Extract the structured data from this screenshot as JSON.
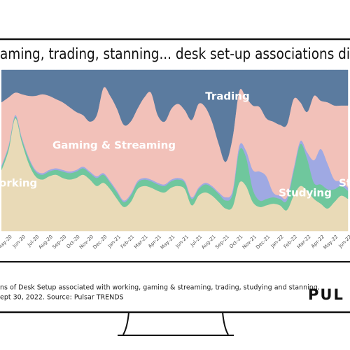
{
  "chart_data": {
    "type": "area",
    "stacked": true,
    "title": "aming, trading, stanning... desk set-up associations di",
    "caption": [
      "ns of Desk Setup associated with working, gaming & streaming, trading, studying and stanning,",
      "ept 30, 2022. Source: Pulsar TRENDS"
    ],
    "logo": "PUL",
    "categories": [
      null,
      "May-20",
      null,
      "Jun-20",
      null,
      "Jul-20",
      null,
      "Aug-20",
      null,
      "Sep-20",
      null,
      "Oct-20",
      null,
      "Nov-20",
      null,
      "Dec-20",
      null,
      "Jan-21",
      null,
      "Feb-21",
      null,
      "Mar-21",
      null,
      "Apr-21",
      null,
      "May-21",
      null,
      "Jun-21",
      null,
      "Jul-21",
      null,
      "Aug-21",
      null,
      "Sep-21",
      null,
      "Oct-21",
      null,
      "Nov-21",
      null,
      "Dec-21",
      null,
      "Jan-22",
      null,
      "Feb-22",
      null,
      "Mar-22",
      null,
      "Apr-22",
      null,
      "May-22",
      null,
      "Jun-22"
    ],
    "ylim": [
      0,
      100
    ],
    "series": [
      {
        "name": "Working",
        "color": "#e9dab7",
        "values": [
          38,
          50,
          70,
          55,
          42,
          34,
          32,
          34,
          35,
          33,
          32,
          33,
          35,
          32,
          28,
          30,
          26,
          20,
          15,
          18,
          26,
          28,
          27,
          25,
          24,
          27,
          28,
          26,
          16,
          22,
          24,
          22,
          18,
          14,
          15,
          30,
          28,
          18,
          15,
          16,
          17,
          16,
          13,
          22,
          28,
          25,
          20,
          17,
          14,
          18,
          22,
          20
        ]
      },
      {
        "name": "Studying",
        "color": "#6fc79d",
        "values": [
          2,
          2,
          1,
          2,
          3,
          3,
          3,
          3,
          3,
          4,
          4,
          4,
          4,
          4,
          5,
          5,
          4,
          4,
          3,
          4,
          4,
          4,
          4,
          4,
          4,
          4,
          4,
          4,
          4,
          4,
          5,
          5,
          5,
          5,
          8,
          20,
          18,
          8,
          4,
          4,
          4,
          4,
          6,
          15,
          26,
          20,
          10,
          12,
          12,
          8,
          6,
          5
        ]
      },
      {
        "name": "Stanning",
        "color": "#9fa9e3",
        "values": [
          1,
          1,
          1,
          1,
          1,
          1,
          1,
          1,
          1,
          1,
          1,
          1,
          1,
          1,
          1,
          1,
          1,
          1,
          1,
          1,
          1,
          1,
          1,
          1,
          1,
          1,
          1,
          1,
          1,
          1,
          1,
          1,
          1,
          2,
          2,
          3,
          4,
          12,
          18,
          14,
          3,
          2,
          2,
          2,
          2,
          4,
          14,
          22,
          16,
          6,
          3,
          2
        ]
      },
      {
        "name": "Gaming & Streaming",
        "color": "#f2c1b9",
        "values": [
          39,
          30,
          14,
          27,
          38,
          46,
          49,
          46,
          43,
          42,
          40,
          36,
          32,
          31,
          38,
          53,
          53,
          51,
          47,
          45,
          45,
          50,
          54,
          42,
          39,
          44,
          46,
          44,
          48,
          52,
          47,
          40,
          30,
          22,
          33,
          34,
          33,
          40,
          40,
          36,
          44,
          44,
          45,
          43,
          24,
          25,
          40,
          30,
          38,
          46,
          47,
          51
        ]
      },
      {
        "name": "Trading",
        "color": "#5b7b9f",
        "values": [
          20,
          17,
          14,
          15,
          16,
          16,
          15,
          16,
          18,
          20,
          23,
          26,
          28,
          32,
          28,
          11,
          16,
          24,
          34,
          32,
          24,
          17,
          14,
          28,
          32,
          24,
          21,
          25,
          31,
          21,
          23,
          32,
          46,
          57,
          42,
          13,
          17,
          22,
          23,
          30,
          32,
          34,
          34,
          18,
          20,
          26,
          16,
          19,
          20,
          22,
          22,
          22
        ]
      }
    ]
  }
}
